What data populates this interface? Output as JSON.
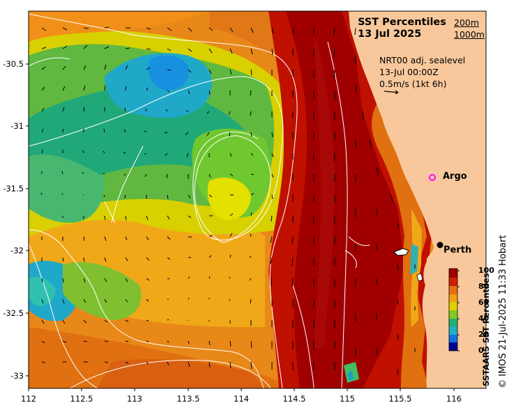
{
  "title": {
    "line1": "SST Percentiles",
    "line2": "13 Jul 2025"
  },
  "contour_legend": {
    "line1": "200m",
    "line2": "1000m"
  },
  "vector_legend": {
    "line1": "NRT00 adj. sealevel",
    "line2": "13-Jul 00:00Z",
    "line3": "0.5m/s (1kt 6h)"
  },
  "markers": {
    "argo": "Argo",
    "perth": "Perth",
    "argo_color": "#ff00ff",
    "perth_color": "#000000"
  },
  "x_ticks": [
    "112",
    "112.5",
    "113",
    "113.5",
    "114",
    "114.5",
    "115",
    "115.5",
    "116"
  ],
  "y_ticks": [
    "-30.5",
    "-31",
    "-31.5",
    "-32",
    "-32.5",
    "-33"
  ],
  "colorbar": {
    "title": "SSTAARS SST Percentiles",
    "ticks": [
      "100",
      "80",
      "60",
      "40",
      "20",
      "0"
    ],
    "colors": [
      "#a00000",
      "#e04000",
      "#f08c00",
      "#f4c400",
      "#e0e000",
      "#80cc20",
      "#20b060",
      "#20b0b0",
      "#1090e0",
      "#2040d0",
      "#000090"
    ]
  },
  "credit": "© IMOS 21-Jul-2025 11:33 Hobart",
  "colors": {
    "land": "#f8c89c",
    "contour": "#ffffff",
    "vector": "#000000"
  }
}
